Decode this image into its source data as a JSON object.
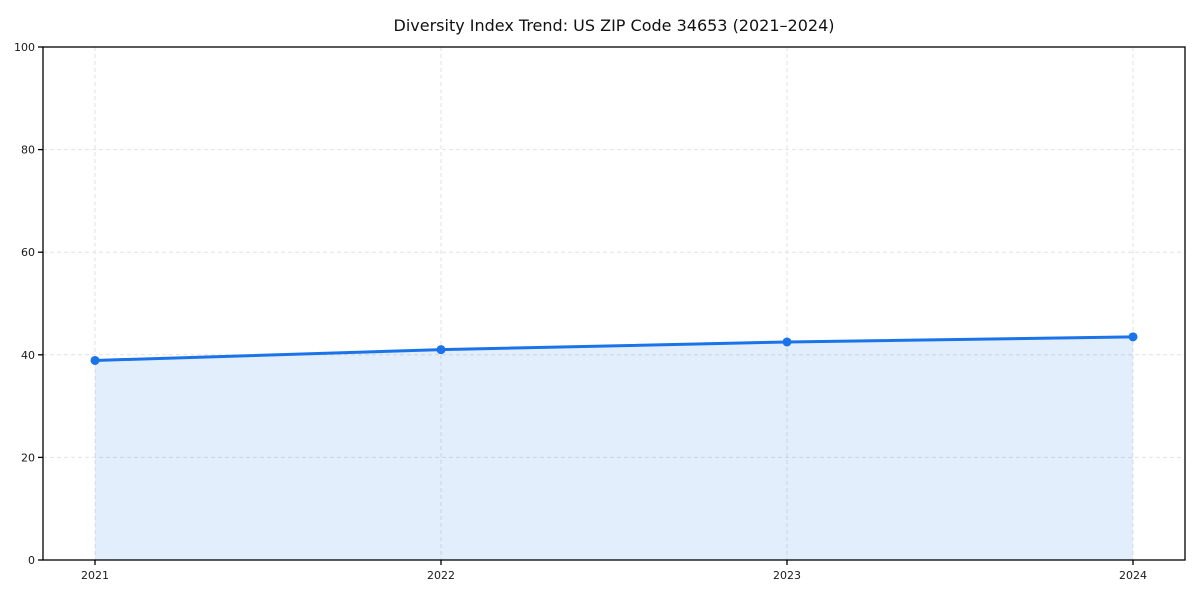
{
  "chart_data": {
    "type": "area",
    "title": "Diversity Index Trend: US ZIP Code 34653 (2021–2024)",
    "categories": [
      "2021",
      "2022",
      "2023",
      "2024"
    ],
    "series": [
      {
        "name": "Diversity Index",
        "values": [
          38.9,
          41.0,
          42.5,
          43.5
        ]
      }
    ],
    "xlabel": "",
    "ylabel": "",
    "ylim": [
      0,
      100
    ],
    "yticks": [
      0,
      20,
      40,
      60,
      80,
      100
    ],
    "grid": true,
    "grid_style": "dashed",
    "legend_position": "none",
    "colors": {
      "line": "#1a73e8",
      "marker": "#1a73e8",
      "area_fill": "rgba(26,115,232,0.12)",
      "grid": "#e2e2e2",
      "axis": "#000000",
      "tick_text": "#1a1a1a",
      "background": "#ffffff"
    }
  }
}
